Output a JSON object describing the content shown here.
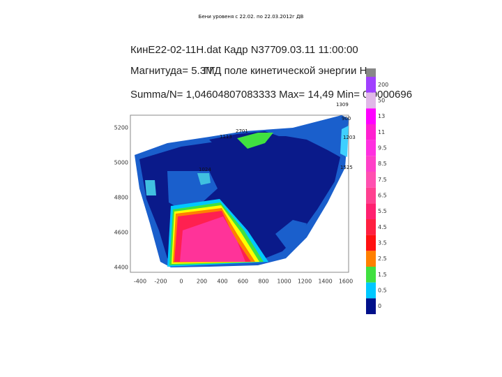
{
  "slide_title": "Бени уровеня с 22.02. по 22.03.2012г ДВ",
  "header": {
    "file": "КинЕ22-02-11Н.dat Кадр N377",
    "datetime": "09.03.11 11:00:00",
    "magnitude": "Магнитуда= 5.3М",
    "field": "ГГД поле кинетической энергии Н.",
    "summary": "Summa/N= 1,04604807083333 Max= 14,49 Min= 0,0000696"
  },
  "x_ticks": [
    "-400",
    "-200",
    "0",
    "200",
    "400",
    "600",
    "800",
    "1000",
    "1200",
    "1400",
    "1600"
  ],
  "y_ticks": [
    "5200",
    "5000",
    "4800",
    "4600",
    "4400"
  ],
  "colorbar_labels": [
    "200",
    "50",
    "13",
    "11",
    "9.5",
    "8.5",
    "7.5",
    "6.5",
    "5.5",
    "4.5",
    "3.5",
    "2.5",
    "1.5",
    "0.5",
    "0"
  ],
  "annotations": [
    "1309",
    "900",
    "1203",
    "2701",
    "1113",
    "1525",
    "1024"
  ]
}
